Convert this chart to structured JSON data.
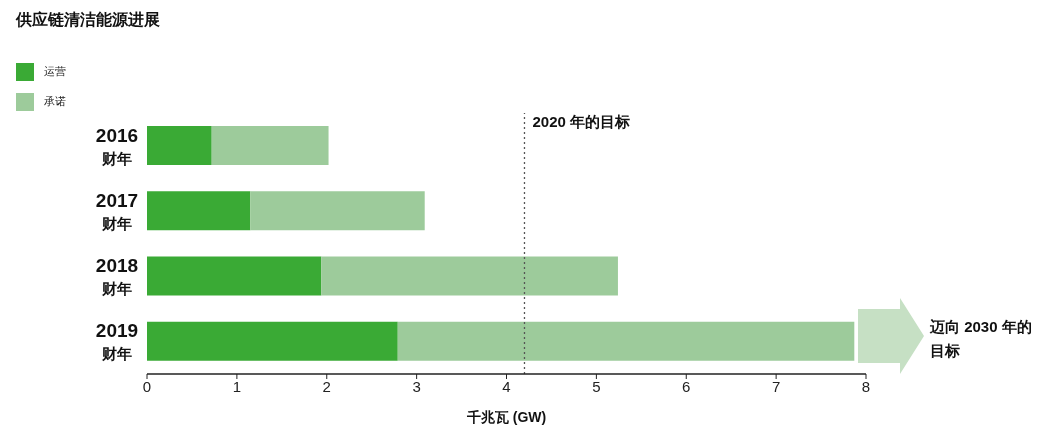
{
  "chart_data": {
    "type": "bar",
    "orientation": "horizontal",
    "stacked": true,
    "title": "供应链清洁能源进展",
    "xlabel": "千兆瓦 (GW)",
    "categories": [
      "2016 财年",
      "2017 财年",
      "2018 财年",
      "2019 财年"
    ],
    "series": [
      {
        "name": "运营",
        "color": "#3aaa35",
        "values": [
          0.72,
          1.15,
          1.94,
          2.79
        ]
      },
      {
        "name": "承诺",
        "color": "#9dcb9b",
        "values": [
          1.3,
          1.94,
          3.3,
          5.08
        ]
      }
    ],
    "xlim": [
      0,
      8
    ],
    "xticks": [
      0,
      1,
      2,
      3,
      4,
      5,
      6,
      7,
      8
    ],
    "grid": false,
    "legend": "top left",
    "ref_lines": [
      {
        "axis": "x",
        "value": 4.2,
        "label": "2020 年的目标",
        "line_style": "dotted",
        "color": "#555555"
      }
    ],
    "annotations": [
      "迈向 2030 年的目标"
    ]
  }
}
